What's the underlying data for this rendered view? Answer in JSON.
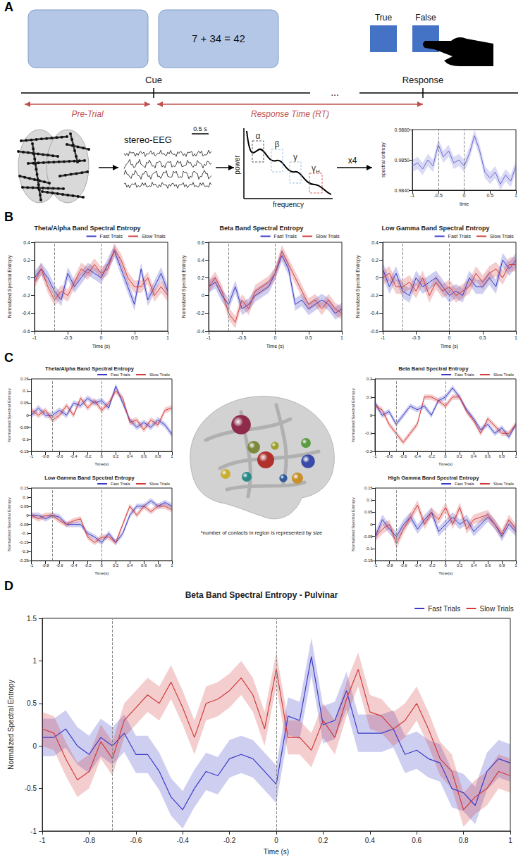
{
  "panels": [
    "A",
    "B",
    "C",
    "D"
  ],
  "diagram": {
    "screen": "7 + 34 = 42",
    "buttons": [
      "True",
      "False"
    ],
    "timeline": {
      "events": [
        "Cue",
        "Response"
      ],
      "gap": "...",
      "intervals": [
        "Pre-Trial",
        "Response Time (RT)"
      ]
    },
    "pipeline": {
      "signal": "stereo-EEG",
      "scale": "0.5 s",
      "spectrum": {
        "y_label": "power",
        "x_label": "frequency",
        "bands": [
          "α",
          "β",
          "γ",
          "γH"
        ]
      },
      "repeat": "x4"
    },
    "brain_caption": "*number of contacts in region is represented by size",
    "regions": [
      {
        "contacts": 12,
        "color": "#8e2a4a"
      },
      {
        "contacts": 9,
        "color": "#b0302c"
      },
      {
        "contacts": 5,
        "color": "#7a8a3a"
      },
      {
        "contacts": 6,
        "color": "#3a4aa8"
      },
      {
        "contacts": 4,
        "color": "#c8902a"
      },
      {
        "contacts": 3,
        "color": "#2a8a8a"
      },
      {
        "contacts": 3,
        "color": "#c8b030"
      },
      {
        "contacts": 3,
        "color": "#5a9a40"
      },
      {
        "contacts": 2,
        "color": "#a0a030"
      },
      {
        "contacts": 2,
        "color": "#305a9a"
      }
    ]
  },
  "chart_data": [
    {
      "panel": "A",
      "type": "line",
      "x_label": "time",
      "y_label": "spectral entropy",
      "x": [
        -1,
        -0.9,
        -0.8,
        -0.7,
        -0.6,
        -0.5,
        -0.4,
        -0.3,
        -0.2,
        -0.1,
        0,
        0.1,
        0.2,
        0.3,
        0.4,
        0.5,
        0.6,
        0.7,
        0.8,
        0.9,
        1
      ],
      "series": [
        {
          "color": "#6a6ad8",
          "values": [
            0.9848,
            0.9849,
            0.9847,
            0.985,
            0.9848,
            0.9855,
            0.9851,
            0.9853,
            0.9849,
            0.985,
            0.9848,
            0.9852,
            0.9858,
            0.9853,
            0.9846,
            0.9844,
            0.9846,
            0.9842,
            0.9845,
            0.9843,
            0.9848
          ],
          "error": 0.0002
        }
      ],
      "xlim": [
        -1,
        1
      ],
      "xticks": [
        -1,
        -0.5,
        0,
        0.5,
        1
      ],
      "ylim": [
        0.984,
        0.986
      ],
      "yticks": [
        {
          "value": 0.984,
          "label": "0.9840"
        },
        {
          "value": 0.985,
          "label": "0.9850"
        },
        {
          "value": 0.986,
          "label": "0.9860"
        }
      ],
      "vlines": [
        -0.5,
        0
      ],
      "grid": false
    },
    {
      "panel": "B",
      "type": "line",
      "title": "Theta/Alpha Band Spectral Entropy",
      "x_label": "Time (s)",
      "y_label": "Normalized Spectral Entropy",
      "x": [
        -1,
        -0.9,
        -0.8,
        -0.7,
        -0.6,
        -0.5,
        -0.4,
        -0.3,
        -0.2,
        -0.1,
        0,
        0.1,
        0.2,
        0.3,
        0.4,
        0.5,
        0.6,
        0.7,
        0.8,
        0.9,
        1
      ],
      "series": [
        {
          "name": "Fast Trials",
          "color": "#3b3bc8",
          "values": [
            0,
            0.1,
            0,
            -0.15,
            -0.25,
            0.05,
            -0.1,
            0,
            0.1,
            0.05,
            0,
            0.15,
            0.3,
            0.1,
            -0.1,
            -0.3,
            0.1,
            -0.25,
            -0.1,
            0.05,
            -0.15
          ],
          "error": 0.07
        },
        {
          "name": "Slow Trials",
          "color": "#d23c3c",
          "values": [
            -0.05,
            0.1,
            -0.1,
            -0.25,
            -0.15,
            -0.2,
            -0.05,
            0.1,
            0.05,
            0.15,
            0.05,
            0.1,
            0.32,
            0.2,
            0,
            -0.1,
            -0.1,
            0,
            -0.2,
            -0.1,
            -0.2
          ],
          "error": 0.07
        }
      ],
      "xlim": [
        -1,
        1
      ],
      "xticks": [
        -1,
        -0.5,
        0,
        0.5,
        1
      ],
      "ylim": [
        -0.6,
        0.4
      ],
      "yticks": [
        -0.6,
        -0.4,
        -0.2,
        0,
        0.2,
        0.4
      ],
      "vlines": [
        -0.7,
        0
      ],
      "legend": "top-right",
      "grid": false
    },
    {
      "panel": "B",
      "type": "line",
      "title": "Beta Band Spectral Entropy",
      "x_label": "Time (s)",
      "y_label": "Normalized Spectral Entropy",
      "x": [
        -1,
        -0.9,
        -0.8,
        -0.7,
        -0.6,
        -0.5,
        -0.4,
        -0.3,
        -0.2,
        -0.1,
        0,
        0.1,
        0.2,
        0.3,
        0.4,
        0.5,
        0.6,
        0.7,
        0.8,
        0.9,
        1
      ],
      "series": [
        {
          "name": "Fast Trials",
          "color": "#3b3bc8",
          "values": [
            0.1,
            0.15,
            0,
            -0.1,
            0.1,
            -0.15,
            -0.1,
            0,
            0.05,
            0.1,
            0.25,
            0.45,
            0.3,
            -0.1,
            -0.05,
            -0.15,
            -0.1,
            -0.05,
            -0.1,
            -0.2,
            -0.15
          ],
          "error": 0.07
        },
        {
          "name": "Slow Trials",
          "color": "#d23c3c",
          "values": [
            0.1,
            0.2,
            0.05,
            -0.2,
            -0.3,
            -0.05,
            -0.15,
            0.05,
            0.1,
            0.15,
            0.25,
            0.5,
            0.35,
            0.2,
            0.05,
            -0.1,
            -0.05,
            -0.15,
            -0.05,
            -0.15,
            -0.2
          ],
          "error": 0.07
        }
      ],
      "xlim": [
        -1,
        1
      ],
      "xticks": [
        -1,
        -0.5,
        0,
        0.5,
        1
      ],
      "ylim": [
        -0.4,
        0.6
      ],
      "yticks": [
        -0.4,
        -0.2,
        0,
        0.2,
        0.4,
        0.6
      ],
      "vlines": [
        -0.7,
        0
      ],
      "legend": "top-right",
      "grid": false
    },
    {
      "panel": "B",
      "type": "line",
      "title": "Low Gamma Band Spectral Entropy",
      "x_label": "Time (s)",
      "y_label": "Normalized Spectral Entropy",
      "x": [
        -1,
        -0.9,
        -0.8,
        -0.7,
        -0.6,
        -0.5,
        -0.4,
        -0.3,
        -0.2,
        -0.1,
        0,
        0.1,
        0.2,
        0.3,
        0.4,
        0.5,
        0.6,
        0.7,
        0.8,
        0.9,
        1
      ],
      "series": [
        {
          "name": "Fast Trials",
          "color": "#3b3bc8",
          "values": [
            0.1,
            -0.1,
            0.05,
            -0.15,
            -0.2,
            0,
            -0.1,
            -0.05,
            0,
            -0.1,
            -0.2,
            -0.15,
            -0.2,
            0,
            -0.1,
            -0.1,
            0,
            -0.1,
            0.2,
            0.1,
            0.2
          ],
          "error": 0.08
        },
        {
          "name": "Slow Trials",
          "color": "#d23c3c",
          "values": [
            0,
            0.05,
            -0.1,
            -0.1,
            -0.05,
            -0.15,
            0,
            -0.2,
            -0.05,
            -0.15,
            -0.1,
            -0.2,
            -0.15,
            -0.1,
            0.05,
            -0.05,
            0.05,
            0.1,
            0,
            0.15,
            0.15
          ],
          "error": 0.08
        }
      ],
      "xlim": [
        -1,
        1
      ],
      "xticks": [
        -1,
        -0.5,
        0,
        0.5,
        1
      ],
      "ylim": [
        -0.6,
        0.4
      ],
      "yticks": [
        -0.6,
        -0.4,
        -0.2,
        0,
        0.2,
        0.4
      ],
      "vlines": [
        -0.7,
        0
      ],
      "legend": "top-right",
      "grid": false
    },
    {
      "panel": "C",
      "type": "line",
      "title": "Theta/Alpha Band Spectral Entropy",
      "x_label": "Time(s)",
      "y_label": "Normalized Spectral Entropy",
      "x": [
        -1,
        -0.9,
        -0.8,
        -0.7,
        -0.6,
        -0.5,
        -0.4,
        -0.3,
        -0.2,
        -0.1,
        0,
        0.1,
        0.2,
        0.3,
        0.4,
        0.5,
        0.6,
        0.7,
        0.8,
        0.9,
        1
      ],
      "series": [
        {
          "name": "Fast Trials",
          "color": "#3b3bc8",
          "values": [
            0,
            0.03,
            0,
            0,
            0.02,
            0,
            0.05,
            0.04,
            0.07,
            0.05,
            0.06,
            0.03,
            0.12,
            0.05,
            -0.02,
            -0.05,
            -0.03,
            -0.05,
            -0.02,
            -0.04,
            -0.08
          ],
          "error": 0.012
        },
        {
          "name": "Slow Trials",
          "color": "#d23c3c",
          "values": [
            0.02,
            0,
            0.02,
            -0.02,
            0,
            0.04,
            0,
            0.07,
            0.03,
            0.06,
            0.02,
            0.05,
            0.1,
            0.07,
            -0.03,
            -0.02,
            -0.06,
            -0.02,
            -0.04,
            0.02,
            0.03
          ],
          "error": 0.012
        }
      ],
      "xlim": [
        -1,
        1
      ],
      "xticks": [
        -1,
        -0.8,
        -0.6,
        -0.4,
        -0.2,
        0,
        0.2,
        0.4,
        0.6,
        0.8,
        1
      ],
      "ylim": [
        -0.15,
        0.15
      ],
      "yticks": [
        -0.15,
        -0.1,
        -0.05,
        0,
        0.05,
        0.1,
        0.15
      ],
      "vlines": [
        -0.7,
        0
      ],
      "legend": "top-right",
      "grid": false
    },
    {
      "panel": "C",
      "type": "line",
      "title": "Beta Band Spectral Entropy",
      "x_label": "Time(s)",
      "y_label": "Normalized Spectral Entropy",
      "x": [
        -1,
        -0.9,
        -0.8,
        -0.7,
        -0.6,
        -0.5,
        -0.4,
        -0.3,
        -0.2,
        -0.1,
        0,
        0.1,
        0.2,
        0.3,
        0.4,
        0.5,
        0.6,
        0.7,
        0.8,
        0.9,
        1
      ],
      "series": [
        {
          "name": "Fast Trials",
          "color": "#3b3bc8",
          "values": [
            0.07,
            0,
            0.02,
            -0.05,
            0,
            0.05,
            0.03,
            0.05,
            0,
            0.08,
            0.1,
            0.15,
            0.1,
            0.03,
            -0.02,
            -0.08,
            -0.05,
            -0.1,
            -0.07,
            -0.12,
            -0.05
          ],
          "error": 0.015
        },
        {
          "name": "Slow Trials",
          "color": "#d23c3c",
          "values": [
            0.05,
            0.03,
            -0.05,
            -0.1,
            -0.15,
            -0.1,
            -0.05,
            0.1,
            0.1,
            0.08,
            0.05,
            0.1,
            0.1,
            0.02,
            -0.03,
            -0.1,
            -0.02,
            -0.06,
            -0.1,
            -0.1,
            -0.05
          ],
          "error": 0.015
        }
      ],
      "xlim": [
        -1,
        1
      ],
      "xticks": [
        -1,
        -0.8,
        -0.6,
        -0.4,
        -0.2,
        0,
        0.2,
        0.4,
        0.6,
        0.8,
        1
      ],
      "ylim": [
        -0.2,
        0.2
      ],
      "yticks": [
        -0.2,
        -0.1,
        0,
        0.1,
        0.2
      ],
      "vlines": [
        -0.7,
        0
      ],
      "legend": "top-right",
      "grid": false
    },
    {
      "panel": "C",
      "type": "line",
      "title": "Low Gamma Band Spectral Entropy",
      "x_label": "Time(s)",
      "y_label": "Normalized Spectral Entropy",
      "x": [
        -1,
        -0.9,
        -0.8,
        -0.7,
        -0.6,
        -0.5,
        -0.4,
        -0.3,
        -0.2,
        -0.1,
        0,
        0.1,
        0.2,
        0.3,
        0.4,
        0.5,
        0.6,
        0.7,
        0.8,
        0.9,
        1
      ],
      "series": [
        {
          "name": "Fast Trials",
          "color": "#3b3bc8",
          "values": [
            0,
            0,
            -0.02,
            0,
            -0.01,
            -0.05,
            -0.05,
            -0.05,
            -0.1,
            -0.12,
            -0.15,
            -0.1,
            -0.15,
            -0.1,
            0,
            0.05,
            0.05,
            0.08,
            0.05,
            0.07,
            0.05
          ],
          "error": 0.015
        },
        {
          "name": "Slow Trials",
          "color": "#d23c3c",
          "values": [
            0,
            -0.02,
            0,
            0,
            -0.03,
            -0.05,
            -0.03,
            -0.02,
            -0.12,
            -0.15,
            -0.12,
            -0.12,
            -0.15,
            -0.05,
            0.05,
            0,
            0.05,
            0.02,
            0.05,
            0.05,
            0.03
          ],
          "error": 0.015
        }
      ],
      "xlim": [
        -1,
        1
      ],
      "xticks": [
        -1,
        -0.8,
        -0.6,
        -0.4,
        -0.2,
        0,
        0.2,
        0.4,
        0.6,
        0.8,
        1
      ],
      "ylim": [
        -0.25,
        0.15
      ],
      "yticks": [
        -0.25,
        -0.2,
        -0.15,
        -0.1,
        -0.05,
        0,
        0.05,
        0.1,
        0.15
      ],
      "vlines": [
        -0.7,
        0
      ],
      "legend": "top-right",
      "grid": false
    },
    {
      "panel": "C",
      "type": "line",
      "title": "High Gamma Band Spectral Entropy",
      "x_label": "Time(s)",
      "y_label": "Normalized Spectral Entropy",
      "x": [
        -1,
        -0.9,
        -0.8,
        -0.7,
        -0.6,
        -0.5,
        -0.4,
        -0.3,
        -0.2,
        -0.1,
        0,
        0.1,
        0.2,
        0.3,
        0.4,
        0.5,
        0.6,
        0.7,
        0.8,
        0.9,
        1
      ],
      "series": [
        {
          "name": "Fast Trials",
          "color": "#3b3bc8",
          "values": [
            -0.05,
            0.02,
            -0.02,
            -0.05,
            0,
            0.03,
            -0.02,
            0.02,
            0.05,
            -0.03,
            0,
            0.03,
            0,
            0.02,
            -0.03,
            0,
            0.03,
            0,
            -0.05,
            0,
            -0.03
          ],
          "error": 0.02
        },
        {
          "name": "Slow Trials",
          "color": "#d23c3c",
          "values": [
            -0.05,
            -0.02,
            0,
            -0.08,
            -0.02,
            0.03,
            0.08,
            0,
            0.05,
            0.02,
            0.07,
            0,
            0.07,
            -0.02,
            0.02,
            0.03,
            0.04,
            0,
            -0.04,
            0.02,
            -0.02
          ],
          "error": 0.02
        }
      ],
      "xlim": [
        -1,
        1
      ],
      "xticks": [
        -1,
        -0.8,
        -0.6,
        -0.4,
        -0.2,
        0,
        0.2,
        0.4,
        0.6,
        0.8,
        1
      ],
      "ylim": [
        -0.15,
        0.15
      ],
      "yticks": [
        -0.15,
        -0.1,
        -0.05,
        0,
        0.05,
        0.1,
        0.15
      ],
      "vlines": [
        -0.7,
        0
      ],
      "legend": "top-right",
      "grid": false
    },
    {
      "panel": "D",
      "type": "line",
      "title": "Beta Band Spectral Entropy - Pulvinar",
      "x_label": "Time (s)",
      "y_label": "Normalized Spectral Entropy",
      "x": [
        -1,
        -0.95,
        -0.9,
        -0.85,
        -0.8,
        -0.75,
        -0.7,
        -0.65,
        -0.6,
        -0.55,
        -0.5,
        -0.45,
        -0.4,
        -0.35,
        -0.3,
        -0.25,
        -0.2,
        -0.15,
        -0.1,
        -0.05,
        0,
        0.05,
        0.1,
        0.15,
        0.2,
        0.25,
        0.3,
        0.35,
        0.4,
        0.45,
        0.5,
        0.55,
        0.6,
        0.65,
        0.7,
        0.75,
        0.8,
        0.85,
        0.9,
        0.95,
        1
      ],
      "series": [
        {
          "name": "Fast Trials",
          "color": "#3b3bc8",
          "values": [
            0.1,
            0.1,
            0.2,
            0,
            -0.1,
            0.1,
            0,
            0.15,
            -0.1,
            -0.1,
            -0.3,
            -0.6,
            -0.75,
            -0.5,
            -0.3,
            -0.35,
            -0.15,
            -0.1,
            -0.15,
            -0.3,
            -0.45,
            0.35,
            0.3,
            1.05,
            0.25,
            0.3,
            0.65,
            0.15,
            0.15,
            0.15,
            0.2,
            -0.1,
            -0.05,
            -0.15,
            -0.2,
            -0.5,
            -0.55,
            -0.7,
            -0.3,
            -0.15,
            -0.2
          ],
          "error": 0.22
        },
        {
          "name": "Slow Trials",
          "color": "#d23c3c",
          "values": [
            0.2,
            0.15,
            -0.15,
            -0.4,
            -0.3,
            0.05,
            -0.15,
            0.3,
            0.45,
            0.6,
            0.5,
            0.75,
            0.45,
            0.1,
            0.5,
            0.55,
            0.65,
            0.8,
            0.6,
            0.2,
            0.9,
            0.1,
            0.1,
            -0.05,
            0.3,
            0.1,
            0.55,
            0.9,
            0.4,
            0.35,
            0.2,
            0.3,
            0.5,
            0.2,
            -0.15,
            -0.3,
            -0.75,
            -0.6,
            -0.5,
            -0.3,
            -0.35
          ],
          "error": 0.2
        }
      ],
      "xlim": [
        -1,
        1
      ],
      "xticks": [
        -1,
        -0.8,
        -0.6,
        -0.4,
        -0.2,
        0,
        0.2,
        0.4,
        0.6,
        0.8,
        1
      ],
      "ylim": [
        -1,
        1.5
      ],
      "yticks": [
        -1,
        -0.5,
        0,
        0.5,
        1,
        1.5
      ],
      "vlines": [
        -0.7,
        0
      ],
      "legend": "top-right",
      "grid": false
    }
  ]
}
